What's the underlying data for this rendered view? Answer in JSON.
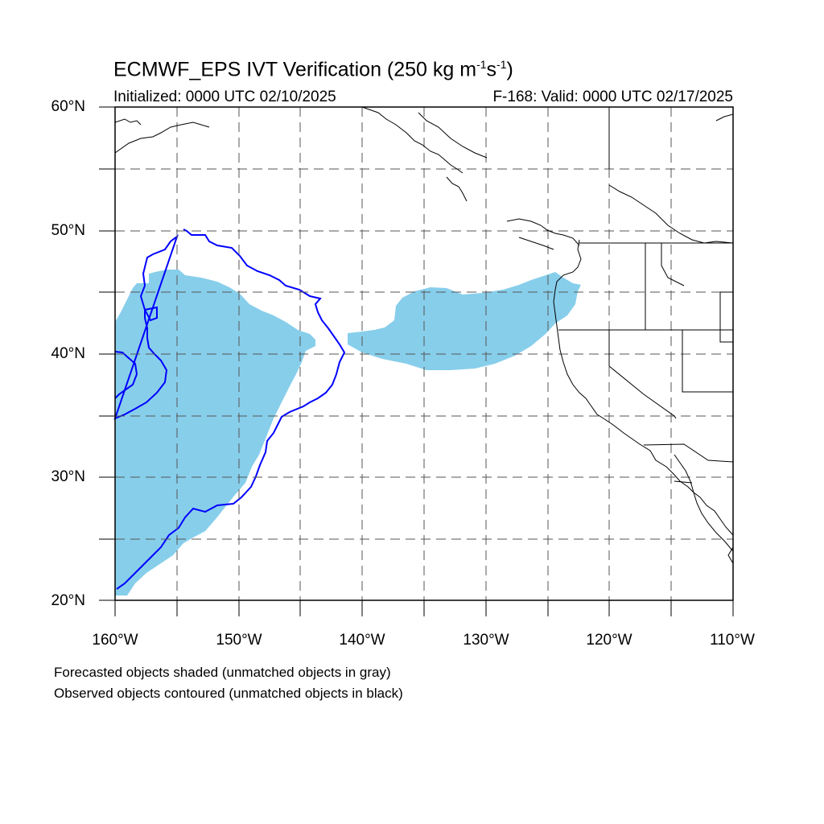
{
  "header": {
    "title_main": "ECMWF_EPS IVT Verification (250 kg m",
    "title_sup1": "-1",
    "title_mid": "s",
    "title_sup2": "-1",
    "title_end": ")",
    "initialized": "Initialized: 0000 UTC 02/10/2025",
    "valid": "F-168: Valid: 0000 UTC 02/17/2025"
  },
  "axes": {
    "lat_labels": [
      "60°N",
      "50°N",
      "40°N",
      "30°N",
      "20°N"
    ],
    "lon_labels": [
      "160°W",
      "150°W",
      "140°W",
      "130°W",
      "120°W",
      "110°W"
    ],
    "lat_range": [
      20,
      60
    ],
    "lon_range": [
      -160,
      -110
    ],
    "grid": true
  },
  "legend": {
    "line1": "Forecasted objects shaded (unmatched objects in gray)",
    "line2": "Observed objects contoured (unmatched objects in black)"
  },
  "colors": {
    "forecast_fill": "#87ceeb",
    "observed_contour": "#0000ff",
    "coastline": "#000000",
    "grid": "#555555"
  }
}
